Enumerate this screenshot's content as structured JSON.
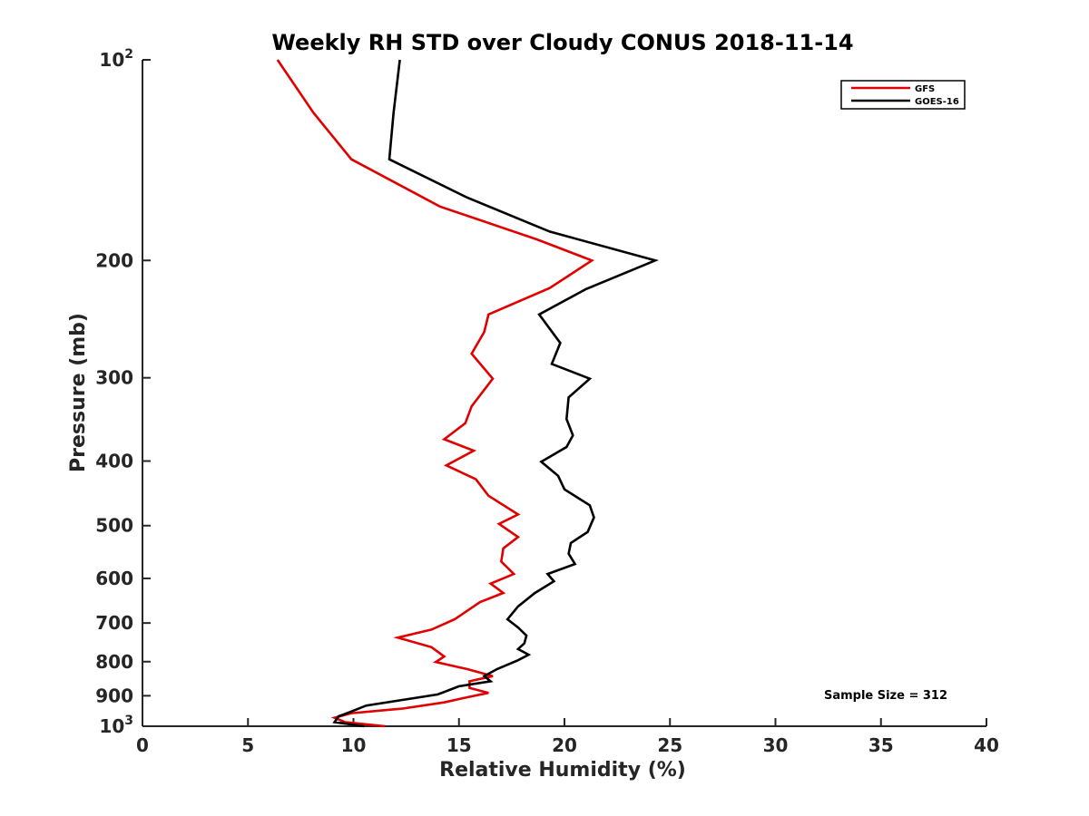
{
  "chart_data": {
    "type": "line",
    "title": "Weekly RH STD over Cloudy CONUS 2018-11-14",
    "xlabel": "Relative Humidity (%)",
    "ylabel": "Pressure (mb)",
    "xlim": [
      0,
      40
    ],
    "ylim": [
      100,
      1000
    ],
    "y_scale": "log",
    "y_reversed": true,
    "x_ticks": [
      "0",
      "5",
      "10",
      "15",
      "20",
      "25",
      "30",
      "35",
      "40"
    ],
    "y_ticks": [
      {
        "value": 100,
        "base": "10",
        "exp": "2"
      },
      {
        "value": 200,
        "label": "200"
      },
      {
        "value": 300,
        "label": "300"
      },
      {
        "value": 400,
        "label": "400"
      },
      {
        "value": 500,
        "label": "500"
      },
      {
        "value": 600,
        "label": "600"
      },
      {
        "value": 700,
        "label": "700"
      },
      {
        "value": 800,
        "label": "800"
      },
      {
        "value": 900,
        "label": "900"
      },
      {
        "value": 1000,
        "base": "10",
        "exp": "3"
      }
    ],
    "legend_position": "top-right",
    "annotation": "Sample Size = 312",
    "series": [
      {
        "name": "GFS",
        "color": "#e00000",
        "points": [
          [
            6.4,
            100
          ],
          [
            8.1,
            120
          ],
          [
            9.9,
            141
          ],
          [
            14.1,
            166
          ],
          [
            18.7,
            186
          ],
          [
            21.3,
            200
          ],
          [
            19.3,
            220
          ],
          [
            16.4,
            241
          ],
          [
            16.2,
            256
          ],
          [
            15.6,
            276
          ],
          [
            16.6,
            301
          ],
          [
            15.6,
            331
          ],
          [
            15.3,
            351
          ],
          [
            14.3,
            371
          ],
          [
            15.7,
            386
          ],
          [
            14.4,
            406
          ],
          [
            15.8,
            426
          ],
          [
            16.4,
            451
          ],
          [
            17.8,
            481
          ],
          [
            16.9,
            497
          ],
          [
            17.8,
            520
          ],
          [
            17.1,
            541
          ],
          [
            17.0,
            566
          ],
          [
            17.6,
            591
          ],
          [
            16.5,
            611
          ],
          [
            17.1,
            631
          ],
          [
            16.0,
            651
          ],
          [
            15.4,
            671
          ],
          [
            14.8,
            691
          ],
          [
            13.7,
            716
          ],
          [
            12.1,
            736
          ],
          [
            13.7,
            761
          ],
          [
            14.3,
            786
          ],
          [
            13.9,
            801
          ],
          [
            15.4,
            821
          ],
          [
            16.6,
            841
          ],
          [
            15.5,
            856
          ],
          [
            15.5,
            876
          ],
          [
            16.4,
            891
          ],
          [
            15.3,
            906
          ],
          [
            14.3,
            921
          ],
          [
            12.3,
            941
          ],
          [
            9.9,
            956
          ],
          [
            9.1,
            971
          ],
          [
            9.6,
            986
          ],
          [
            11.5,
            1000
          ]
        ]
      },
      {
        "name": "GOES-16",
        "color": "#000000",
        "points": [
          [
            12.2,
            100
          ],
          [
            11.9,
            120
          ],
          [
            11.7,
            141
          ],
          [
            15.4,
            161
          ],
          [
            19.3,
            181
          ],
          [
            24.3,
            200
          ],
          [
            21.0,
            221
          ],
          [
            18.8,
            241
          ],
          [
            19.8,
            266
          ],
          [
            19.4,
            286
          ],
          [
            21.2,
            301
          ],
          [
            20.2,
            321
          ],
          [
            20.1,
            346
          ],
          [
            20.4,
            366
          ],
          [
            20.1,
            381
          ],
          [
            18.9,
            401
          ],
          [
            19.7,
            421
          ],
          [
            20.0,
            441
          ],
          [
            21.2,
            466
          ],
          [
            21.4,
            486
          ],
          [
            21.1,
            511
          ],
          [
            20.3,
            531
          ],
          [
            20.2,
            551
          ],
          [
            20.5,
            571
          ],
          [
            19.2,
            591
          ],
          [
            19.5,
            606
          ],
          [
            18.6,
            631
          ],
          [
            17.8,
            661
          ],
          [
            17.3,
            691
          ],
          [
            17.8,
            711
          ],
          [
            18.2,
            731
          ],
          [
            18.1,
            751
          ],
          [
            17.8,
            766
          ],
          [
            18.3,
            781
          ],
          [
            17.8,
            796
          ],
          [
            16.8,
            821
          ],
          [
            16.2,
            841
          ],
          [
            16.5,
            856
          ],
          [
            15.0,
            871
          ],
          [
            14.0,
            896
          ],
          [
            10.6,
            931
          ],
          [
            9.7,
            956
          ],
          [
            9.3,
            966
          ],
          [
            9.1,
            986
          ],
          [
            10.5,
            1000
          ]
        ]
      }
    ]
  }
}
